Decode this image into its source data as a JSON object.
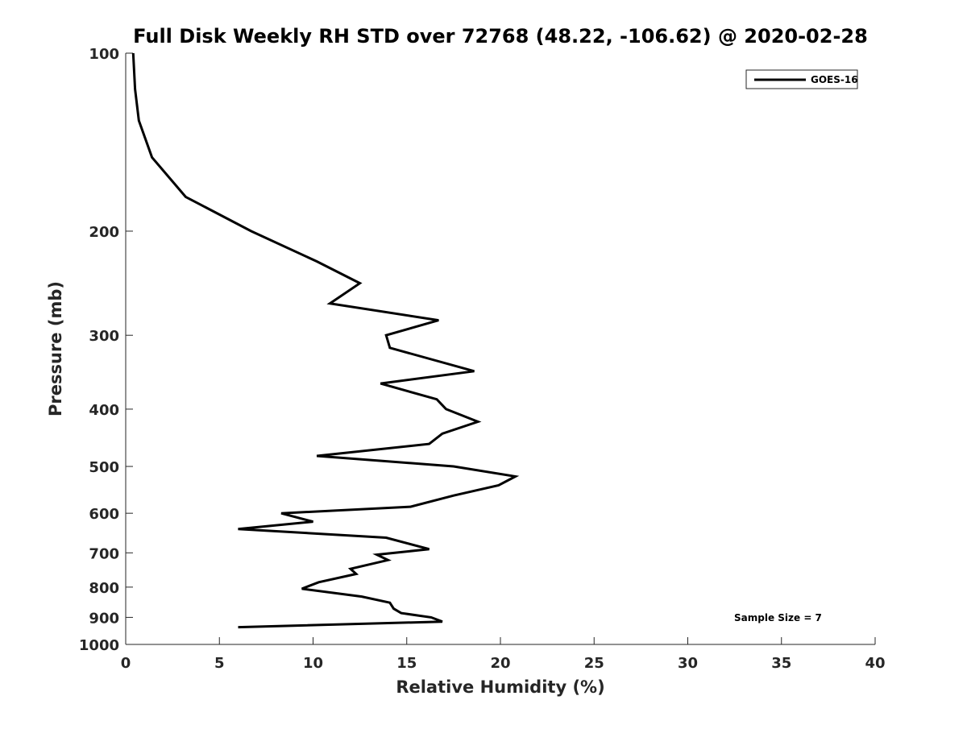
{
  "chart_data": {
    "type": "line",
    "title": "Full Disk Weekly RH STD over 72768 (48.22, -106.62) @ 2020-02-28",
    "xlabel": "Relative Humidity (%)",
    "ylabel": "Pressure (mb)",
    "xlim": [
      0,
      40
    ],
    "ylim": [
      1000,
      100
    ],
    "y_scale": "log",
    "x_ticks": [
      0,
      5,
      10,
      15,
      20,
      25,
      30,
      35,
      40
    ],
    "y_ticks": [
      100,
      200,
      300,
      400,
      500,
      600,
      700,
      800,
      900,
      1000
    ],
    "grid": false,
    "legend_position": "top-right",
    "annotation": "Sample Size = 7",
    "line_color": "#000000",
    "series": [
      {
        "name": "GOES-16",
        "x": [
          0.4,
          0.5,
          0.7,
          1.4,
          3.2,
          6.7,
          10.2,
          12.5,
          10.9,
          16.7,
          13.9,
          14.1,
          18.6,
          13.6,
          16.6,
          17.1,
          18.8,
          16.9,
          16.2,
          10.2,
          17.5,
          20.8,
          19.9,
          17.5,
          15.2,
          8.3,
          10.0,
          6.0,
          13.9,
          16.2,
          13.4,
          14.0,
          12.0,
          12.3,
          10.3,
          9.4,
          12.6,
          14.1,
          14.3,
          14.7,
          16.3,
          16.9,
          6.0
        ],
        "y": [
          100,
          115,
          130,
          150,
          175,
          200,
          225,
          245,
          265,
          283,
          300,
          315,
          345,
          362,
          385,
          400,
          420,
          440,
          458,
          480,
          500,
          520,
          538,
          560,
          585,
          600,
          620,
          638,
          660,
          690,
          705,
          720,
          745,
          760,
          785,
          805,
          830,
          850,
          870,
          885,
          900,
          915,
          935
        ]
      }
    ]
  }
}
